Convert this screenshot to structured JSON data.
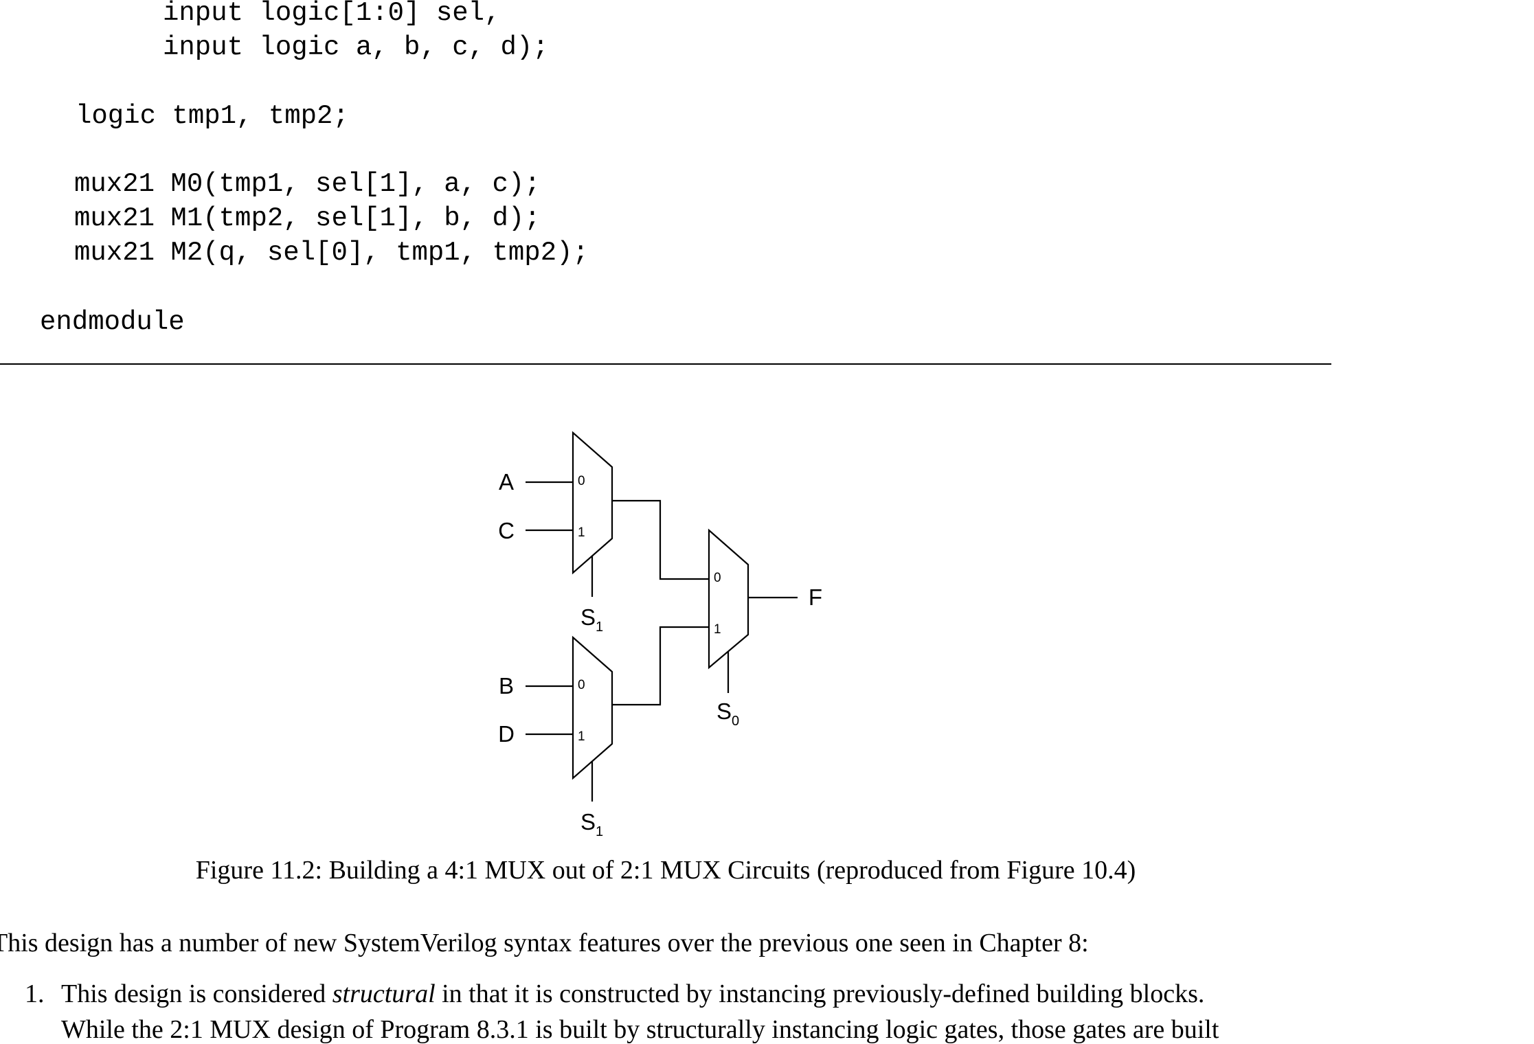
{
  "code": {
    "lines": [
      "input logic[1:0] sel,",
      "input logic a, b, c, d);",
      "logic tmp1, tmp2;",
      "mux21 M0(tmp1, sel[1], a, c);",
      "mux21 M1(tmp2, sel[1], b, d);",
      "mux21 M2(q, sel[0], tmp1, tmp2);",
      "endmodule"
    ]
  },
  "figure": {
    "inputs": {
      "a": "A",
      "c": "C",
      "b": "B",
      "d": "D"
    },
    "output": "F",
    "mux_input_labels": {
      "zero": "0",
      "one": "1"
    },
    "selects": {
      "top": {
        "letter": "S",
        "subscript": "1"
      },
      "bottom": {
        "letter": "S",
        "subscript": "1"
      },
      "final": {
        "letter": "S",
        "subscript": "0"
      }
    },
    "caption": "Figure 11.2: Building a 4:1 MUX out of 2:1 MUX Circuits (reproduced from Figure 10.4)"
  },
  "body": {
    "intro": "This design has a number of new SystemVerilog syntax features over the previous one seen in Chapter 8:",
    "item1": {
      "number": "1.",
      "before": "This design is considered ",
      "emphasis": "structural",
      "after": " in that it is constructed by instancing previously-defined building blocks.",
      "line2": "While the 2:1 MUX design of Program 8.3.1 is built by structurally instancing logic gates, those gates are built"
    }
  }
}
